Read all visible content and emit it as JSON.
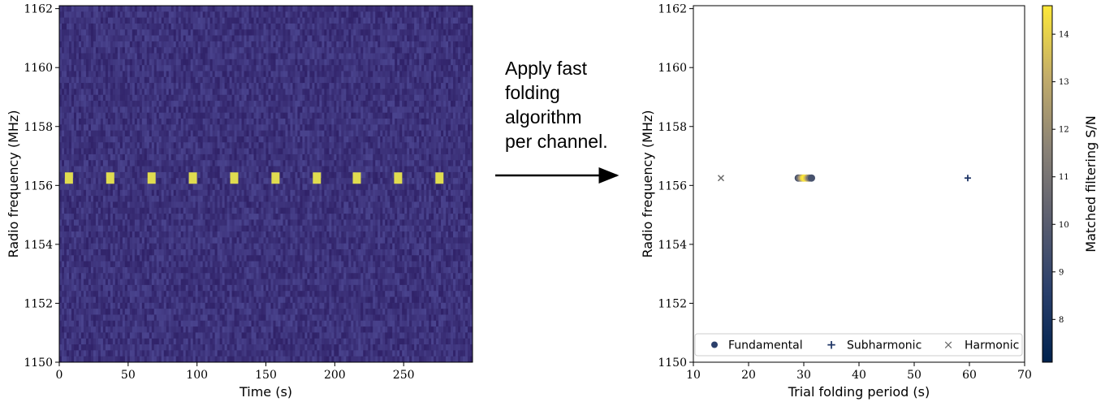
{
  "annotation": {
    "lines": [
      "Apply fast",
      "folding",
      "algorithm",
      "per channel."
    ]
  },
  "chart_data": [
    {
      "type": "heatmap",
      "xlabel": "Time (s)",
      "ylabel": "Radio frequency (MHz)",
      "xlim": [
        0,
        300
      ],
      "ylim": [
        1150,
        1162.1
      ],
      "xticks": [
        0,
        50,
        100,
        150,
        200,
        250
      ],
      "yticks": [
        1150,
        1152,
        1154,
        1156,
        1158,
        1160,
        1162
      ],
      "background_color": "#3b2e7a",
      "pulse_color": "#e0dc50",
      "pulse_frequency": 1156.25,
      "pulse_times": [
        7,
        37,
        67,
        97,
        127,
        157,
        187,
        216,
        246,
        276
      ]
    },
    {
      "type": "scatter",
      "xlabel": "Trial folding period (s)",
      "ylabel": "Radio frequency (MHz)",
      "xlim": [
        10,
        70
      ],
      "ylim": [
        1150,
        1162.1
      ],
      "xticks": [
        10,
        20,
        30,
        40,
        50,
        60,
        70
      ],
      "yticks": [
        1150,
        1152,
        1154,
        1156,
        1158,
        1160,
        1162
      ],
      "legend_position": "bottom",
      "series": [
        {
          "name": "Fundamental",
          "marker": "circle",
          "points": [
            {
              "x": 29.0,
              "y": 1156.25,
              "snr": 9.5
            },
            {
              "x": 29.3,
              "y": 1156.25,
              "snr": 11.0
            },
            {
              "x": 29.6,
              "y": 1156.25,
              "snr": 12.5
            },
            {
              "x": 29.9,
              "y": 1156.25,
              "snr": 14.0
            },
            {
              "x": 30.2,
              "y": 1156.25,
              "snr": 14.6
            },
            {
              "x": 30.5,
              "y": 1156.25,
              "snr": 14.0
            },
            {
              "x": 30.8,
              "y": 1156.25,
              "snr": 12.5
            },
            {
              "x": 31.1,
              "y": 1156.25,
              "snr": 11.0
            },
            {
              "x": 31.4,
              "y": 1156.25,
              "snr": 9.5
            }
          ]
        },
        {
          "name": "Subharmonic",
          "marker": "plus",
          "color": "#1f3566",
          "points": [
            {
              "x": 59.7,
              "y": 1156.25
            }
          ]
        },
        {
          "name": "Harmonic",
          "marker": "x",
          "color": "#6b6b6b",
          "points": [
            {
              "x": 15.0,
              "y": 1156.25
            }
          ]
        }
      ],
      "colorbar": {
        "label": "Matched filtering S/N",
        "range": [
          7.1,
          14.6
        ],
        "ticks": [
          8,
          9,
          10,
          11,
          12,
          13,
          14
        ],
        "colormap": "cividis"
      }
    }
  ]
}
